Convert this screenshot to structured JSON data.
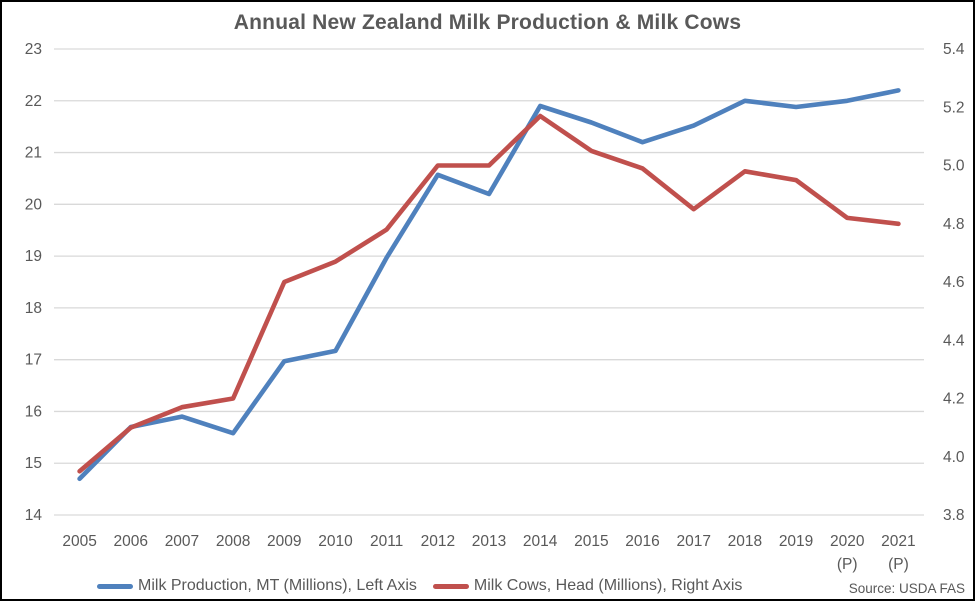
{
  "chart_data": {
    "type": "line",
    "title": "Annual New Zealand Milk Production & Milk Cows",
    "source": "Source: USDA FAS",
    "grid": true,
    "legend_position": "bottom",
    "categories": [
      "2005",
      "2006",
      "2007",
      "2008",
      "2009",
      "2010",
      "2011",
      "2012",
      "2013",
      "2014",
      "2015",
      "2016",
      "2017",
      "2018",
      "2019",
      "2020",
      "2021"
    ],
    "sub_labels": [
      "",
      "",
      "",
      "",
      "",
      "",
      "",
      "",
      "",
      "",
      "",
      "",
      "",
      "",
      "",
      "(P)",
      "(P)"
    ],
    "left_axis": {
      "min": 14,
      "max": 23,
      "step": 1,
      "decimals": 0,
      "ticks": [
        "14",
        "15",
        "16",
        "17",
        "18",
        "19",
        "20",
        "21",
        "22",
        "23"
      ]
    },
    "right_axis": {
      "min": 3.8,
      "max": 5.4,
      "step": 0.2,
      "decimals": 1,
      "ticks": [
        "3.8",
        "4.0",
        "4.2",
        "4.4",
        "4.6",
        "4.8",
        "5.0",
        "5.2",
        "5.4"
      ]
    },
    "series": [
      {
        "name": "Milk Production, MT (Millions), Left Axis",
        "axis": "left",
        "color": "#4F81BD",
        "values": [
          14.7,
          15.7,
          15.9,
          15.58,
          16.97,
          17.17,
          18.97,
          20.57,
          20.2,
          21.9,
          21.58,
          21.2,
          21.52,
          22.0,
          21.88,
          22.0,
          22.2
        ]
      },
      {
        "name": "Milk Cows, Head (Millions), Right Axis",
        "axis": "right",
        "color": "#C0504D",
        "values": [
          3.95,
          4.1,
          4.17,
          4.2,
          4.6,
          4.67,
          4.78,
          5.0,
          5.0,
          5.17,
          5.05,
          4.99,
          4.85,
          4.98,
          4.95,
          4.82,
          4.8
        ]
      }
    ],
    "colors": {
      "grid": "#D9D9D9",
      "axis_text": "#595959",
      "title_text": "#595959",
      "background": "#FFFFFF"
    }
  }
}
